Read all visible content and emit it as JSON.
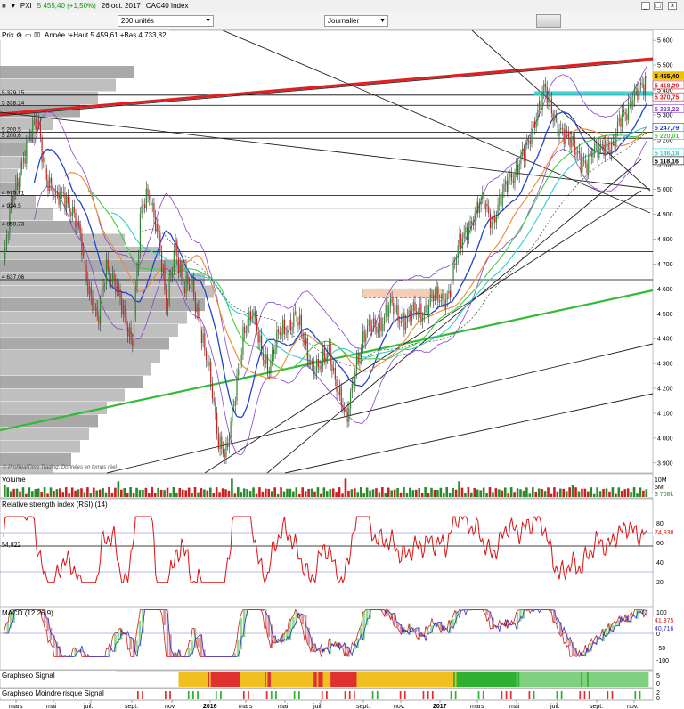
{
  "window": {
    "title_symbol": "PXI",
    "price_change": "5 455,40 (+1,50%)",
    "date": "26 oct. 2017",
    "instrument": "CAC40 Index",
    "units_dropdown": "200 unités",
    "period_dropdown": "Journalier"
  },
  "panels": {
    "price": {
      "label": "Prix",
      "stats": "Année :+Haut 5 459,61 +Bas 4 733,82",
      "watermark": "© ProRealTime Trading. Données en temps réel"
    },
    "volume": {
      "label": "Volume",
      "axis": [
        "10M",
        "5M"
      ],
      "last": "3 708k"
    },
    "rsi": {
      "label": "Relative strength index (RSI) (14)",
      "axis": [
        "80",
        "60",
        "40",
        "20"
      ],
      "last": "74,938",
      "ref": "54,822"
    },
    "macd": {
      "label": "MACD (12 26 9)",
      "axis": [
        "100",
        "50",
        "0",
        "-50",
        "-100"
      ],
      "last1": "41,375",
      "last2": "40,716"
    },
    "signal": {
      "label": "Graphseo Signal",
      "axis": [
        "5",
        "0"
      ]
    },
    "signal2": {
      "label": "Graphseo Moindre risque Signal",
      "axis": [
        "2",
        "0"
      ]
    }
  },
  "colors": {
    "up": "#2a8a2a",
    "down": "#cc2020",
    "resistance": "#e02020",
    "ma_blue": "#2244cc",
    "ma_green": "#44cc44",
    "ma_cyan": "#33cccc",
    "ma_orange": "#ee8833",
    "bollinger": "#8844cc",
    "rsi": "#dd1111"
  },
  "chart_data": {
    "type": "line",
    "title": "CAC40 Index",
    "ylim": [
      3860,
      5640
    ],
    "y_ticks": [
      3900,
      4000,
      4100,
      4200,
      4300,
      4400,
      4500,
      4600,
      4700,
      4800,
      4900,
      5000,
      5100,
      5200,
      5300,
      5400,
      5500,
      5600
    ],
    "x_labels": [
      "mars",
      "mai",
      "juil.",
      "sept.",
      "nov.",
      "2016",
      "mars",
      "mai",
      "juil.",
      "sept.",
      "nov.",
      "2017",
      "mars",
      "mai",
      "juil.",
      "sept.",
      "nov."
    ],
    "price_levels_left": [
      "5 379,15",
      "5 338,14",
      "5 200,5",
      "5 200,6",
      "4 975,71",
      "4 924,5",
      "4 850,73",
      "4 637,06"
    ],
    "price_levels_right": [
      {
        "label": "5 455,40",
        "value": 5455.4,
        "color": "#f0c000"
      },
      {
        "label": "5 418,29",
        "value": 5418.29,
        "color": "#cc2020"
      },
      {
        "label": "5 370,75",
        "value": 5370.75,
        "color": "#cc2020"
      },
      {
        "label": "5 323,22",
        "value": 5323.22,
        "color": "#8844cc"
      },
      {
        "label": "5 247,79",
        "value": 5247.79,
        "color": "#2244cc"
      },
      {
        "label": "5 220,01",
        "value": 5220.01,
        "color": "#44cc44"
      },
      {
        "label": "5 146,18",
        "value": 5146.18,
        "color": "#33cccc"
      },
      {
        "label": "5 118,16",
        "value": 5118.16,
        "color": "#000000"
      }
    ],
    "series": [
      {
        "name": "CAC40",
        "values": [
          4700,
          4950,
          5100,
          5200,
          5283,
          5050,
          4950,
          5000,
          4900,
          4800,
          4600,
          4450,
          4700,
          4630,
          4480,
          4400,
          4900,
          4980,
          4850,
          4500,
          4800,
          4600,
          4600,
          4450,
          4250,
          4000,
          3950,
          4150,
          4450,
          4500,
          4350,
          4300,
          4400,
          4450,
          4500,
          4380,
          4300,
          4280,
          4350,
          4200,
          4050,
          4300,
          4400,
          4450,
          4470,
          4520,
          4500,
          4480,
          4500,
          4520,
          4560,
          4550,
          4600,
          4750,
          4850,
          4900,
          4950,
          4880,
          4950,
          5050,
          5100,
          5150,
          5300,
          5400,
          5300,
          5250,
          5180,
          5150,
          5100,
          5150,
          5200,
          5150,
          5300,
          5350,
          5380,
          5455
        ]
      }
    ]
  }
}
